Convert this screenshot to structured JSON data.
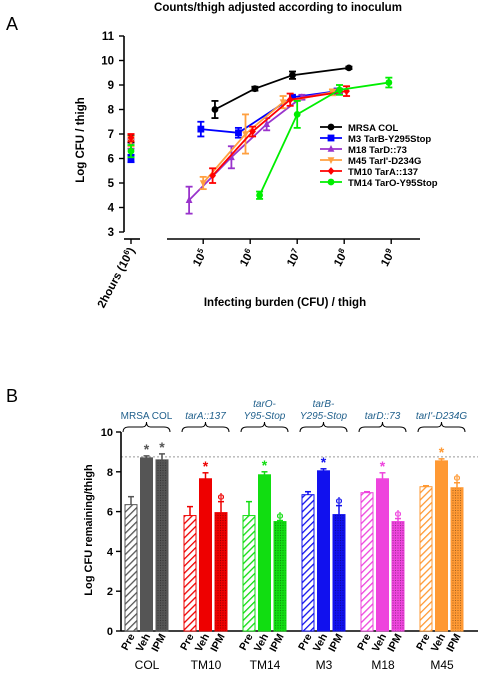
{
  "panel_a_label": "A",
  "panel_b_label": "B",
  "chart_data": [
    {
      "type": "line",
      "title": "Counts/thigh adjusted according to inoculum",
      "xlabel": "Infecting burden (CFU) / thigh",
      "ylabel": "Log CFU  / thigh",
      "xscale": "log",
      "xlim_log10": [
        4.4,
        9.4
      ],
      "ylim": [
        3,
        11
      ],
      "ytick_labels": [
        "3",
        "4",
        "5",
        "6",
        "7",
        "8",
        "9",
        "10",
        "11"
      ],
      "x_ticks": [
        {
          "base": "10",
          "exp": "5",
          "log": 5
        },
        {
          "base": "10",
          "exp": "6",
          "log": 6
        },
        {
          "base": "10",
          "exp": "7",
          "log": 7
        },
        {
          "base": "10",
          "exp": "8",
          "log": 8
        },
        {
          "base": "10",
          "exp": "9",
          "log": 9
        }
      ],
      "baseline_label": {
        "text": "2hours (10",
        "exp": "6",
        "close": ")"
      },
      "legend_position": "right",
      "series": [
        {
          "name": "MRSA COL",
          "color": "#000000",
          "marker": "circle",
          "x_log10": [
            5.25,
            6.1,
            6.9,
            8.1
          ],
          "y": [
            8.0,
            8.85,
            9.4,
            9.7
          ],
          "err": [
            0.35,
            0.08,
            0.15,
            0.05
          ],
          "baseline": 6.8,
          "baseline_err": 0.15
        },
        {
          "name": "M3 TarB-Y295Stop",
          "color": "#0000ff",
          "marker": "square",
          "x_log10": [
            4.95,
            5.75,
            6.9,
            7.85
          ],
          "y": [
            7.2,
            7.05,
            8.5,
            8.75
          ],
          "err": [
            0.3,
            0.2,
            0.05,
            0.1
          ],
          "baseline": 6.0,
          "baseline_err": 0.15
        },
        {
          "name": "M18 TarD::73",
          "color": "#9933cc",
          "marker": "triangle-up",
          "x_log10": [
            4.7,
            5.6,
            6.35,
            7.1,
            7.9
          ],
          "y": [
            4.3,
            6.05,
            7.4,
            8.5,
            8.75
          ],
          "err": [
            0.55,
            0.45,
            0.25,
            0.1,
            0.1
          ],
          "baseline": 6.6,
          "baseline_err": 0.2
        },
        {
          "name": "M45 TarI'-D234G",
          "color": "#ffa040",
          "marker": "triangle-down",
          "x_log10": [
            5.0,
            5.9,
            6.7,
            7.75
          ],
          "y": [
            5.0,
            7.0,
            8.3,
            8.7
          ],
          "err": [
            0.25,
            0.8,
            0.25,
            0.12
          ],
          "baseline": 6.7,
          "baseline_err": 0.2
        },
        {
          "name": "TM10 TarA::137",
          "color": "#ff0000",
          "marker": "diamond",
          "x_log10": [
            5.2,
            6.05,
            6.85,
            8.05
          ],
          "y": [
            5.3,
            7.1,
            8.4,
            8.75
          ],
          "err": [
            0.3,
            0.2,
            0.25,
            0.2
          ],
          "baseline": 6.85,
          "baseline_err": 0.15
        },
        {
          "name": "TM14 TarO-Y95Stop",
          "color": "#00ee00",
          "marker": "circle",
          "x_log10": [
            6.2,
            7.0,
            7.9,
            8.95
          ],
          "y": [
            4.5,
            7.8,
            8.8,
            9.1
          ],
          "err": [
            0.15,
            0.55,
            0.2,
            0.2
          ],
          "baseline": 6.3,
          "baseline_err": 0.25
        }
      ]
    },
    {
      "type": "bar",
      "ylabel": "Log CFU remaining/thigh",
      "ylim": [
        0,
        10
      ],
      "ytick_labels": [
        "0",
        "2",
        "4",
        "6",
        "8",
        "10"
      ],
      "reference_line": 8.75,
      "bar_labels": [
        "Pre",
        "Veh",
        "IPM"
      ],
      "groups": [
        {
          "strain": "COL",
          "annotation": "MRSA COL",
          "color": "#555555",
          "values": [
            6.35,
            8.7,
            8.6
          ],
          "err": [
            0.4,
            0.1,
            0.3
          ],
          "marks": [
            "",
            "*",
            "*"
          ]
        },
        {
          "strain": "TM10",
          "annotation": "tarA::137",
          "color": "#ee0000",
          "values": [
            5.8,
            7.65,
            5.95
          ],
          "err": [
            0.45,
            0.3,
            0.55
          ],
          "marks": [
            "",
            "*",
            "ϕ"
          ]
        },
        {
          "strain": "TM14",
          "annotation": "tarO-\nY95-Stop",
          "color": "#11dd11",
          "values": [
            5.8,
            7.85,
            5.5
          ],
          "err": [
            0.7,
            0.15,
            0.05
          ],
          "marks": [
            "",
            "*",
            "ϕ"
          ]
        },
        {
          "strain": "M3",
          "annotation": "tarB-\nY295-Stop",
          "color": "#1111ee",
          "values": [
            6.85,
            8.05,
            5.85
          ],
          "err": [
            0.15,
            0.1,
            0.45
          ],
          "marks": [
            "",
            "*",
            "ϕ"
          ]
        },
        {
          "strain": "M18",
          "annotation": "tarD::73",
          "color": "#ee44dd",
          "values": [
            6.95,
            7.65,
            5.5
          ],
          "err": [
            0.05,
            0.3,
            0.15
          ],
          "marks": [
            "",
            "*",
            "ϕ"
          ]
        },
        {
          "strain": "M45",
          "annotation": "tarI'-D234G",
          "color": "#ff9933",
          "values": [
            7.25,
            8.55,
            7.2
          ],
          "err": [
            0.05,
            0.1,
            0.25
          ],
          "marks": [
            "",
            "*",
            "ϕ"
          ]
        }
      ]
    }
  ]
}
